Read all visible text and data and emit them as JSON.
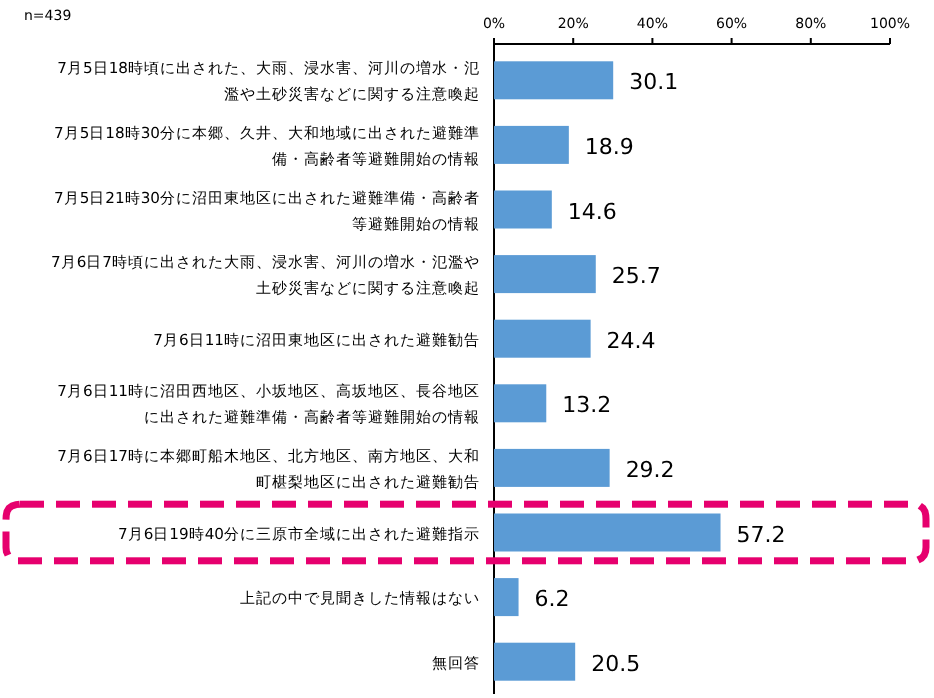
{
  "chart_data": {
    "type": "bar",
    "orientation": "horizontal",
    "annotations": [
      "n=439"
    ],
    "categories": [
      "7月5日18時頃に出された、大雨、浸水害、河川の増水・氾濫や土砂災害などに関する注意喚起",
      "7月5日18時30分に本郷、久井、大和地域に出された避難準備・高齢者等避難開始の情報",
      "7月5日21時30分に沼田東地区に出された避難準備・高齢者等避難開始の情報",
      "7月6日7時頃に出された大雨、浸水害、河川の増水・氾濫や土砂災害などに関する注意喚起",
      "7月6日11時に沼田東地区に出された避難勧告",
      "7月6日11時に沼田西地区、小坂地区、高坂地区、長谷地区に出された避難準備・高齢者等避難開始の情報",
      "7月6日17時に本郷町船木地区、北方地区、南方地区、大和町椹梨地区に出された避難勧告",
      "7月6日19時40分に三原市全域に出された避難指示",
      "上記の中で見聞きした情報はない",
      "無回答"
    ],
    "values": [
      30.1,
      18.9,
      14.6,
      25.7,
      24.4,
      13.2,
      29.2,
      57.2,
      6.2,
      20.5
    ],
    "color": "#5b9bd5",
    "data_labels": true,
    "grid": false,
    "xlim": [
      0,
      100
    ],
    "xticks": [
      {
        "value": 0,
        "label": "0%"
      },
      {
        "value": 20,
        "label": "20%"
      },
      {
        "value": 40,
        "label": "40%"
      },
      {
        "value": 60,
        "label": "60%"
      },
      {
        "value": 80,
        "label": "80%"
      },
      {
        "value": 100,
        "label": "100%"
      }
    ]
  }
}
